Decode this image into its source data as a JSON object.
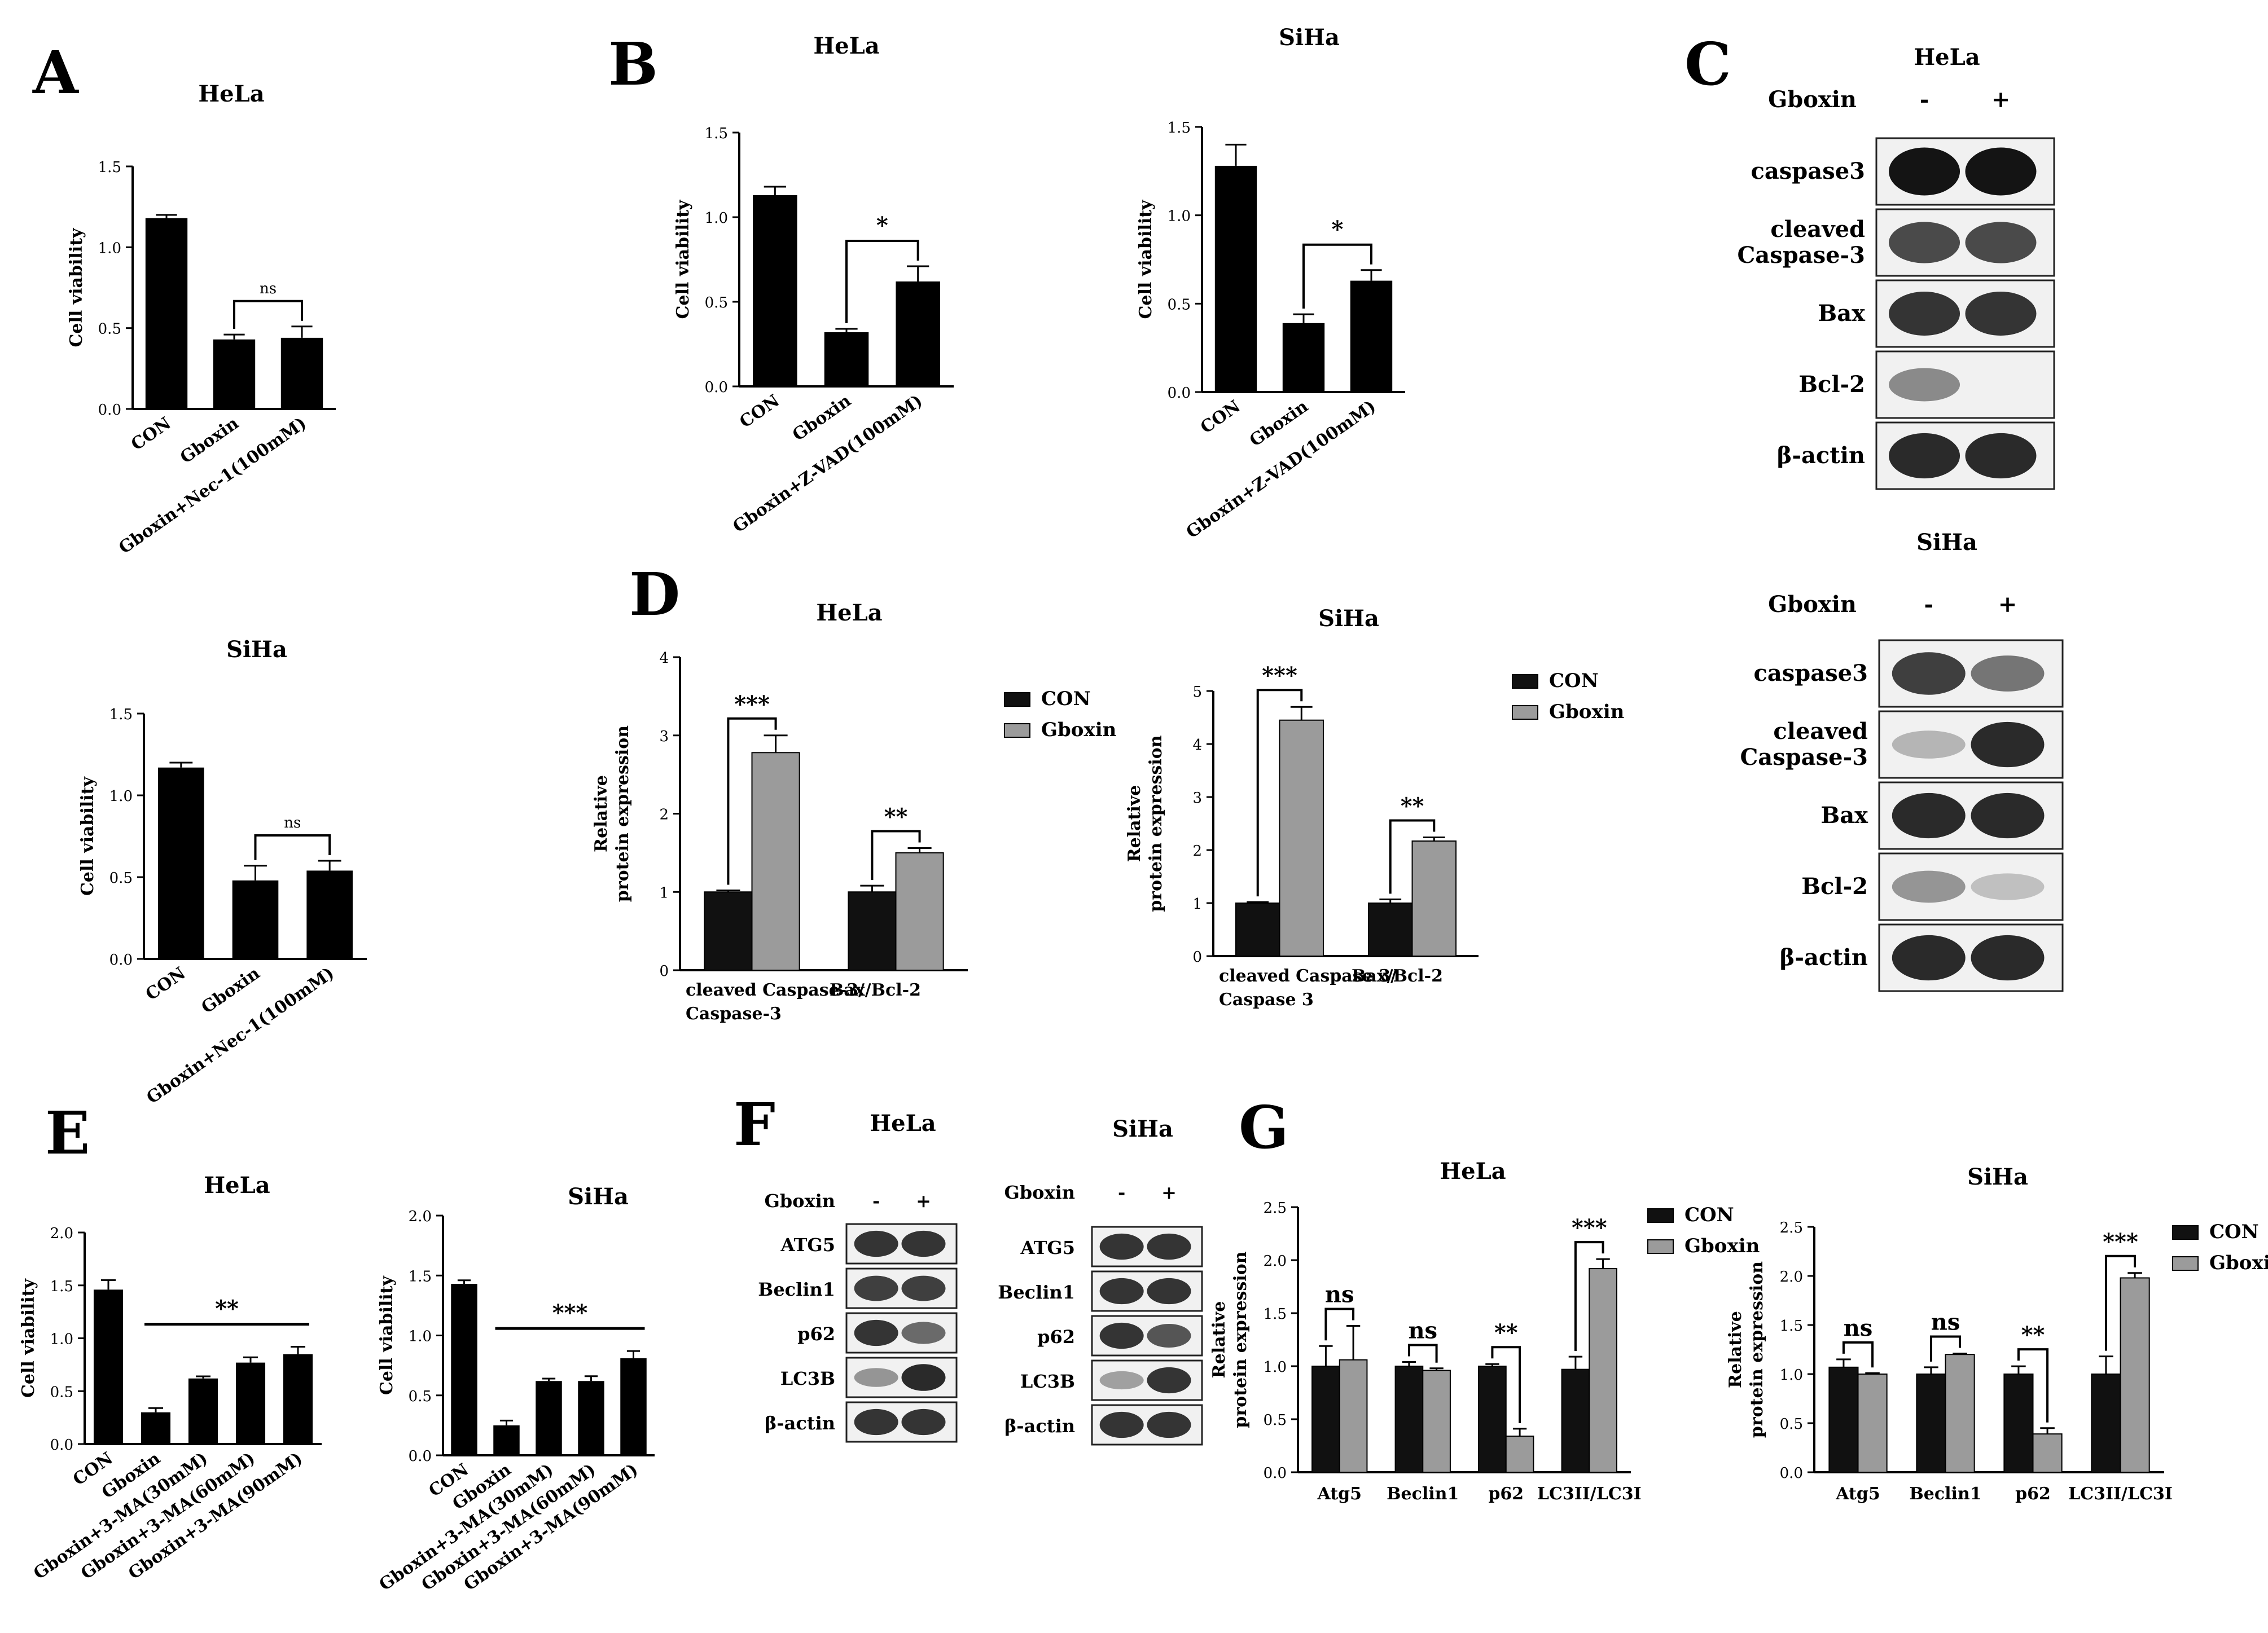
{
  "panels": {
    "A": "A",
    "B": "B",
    "C": "C",
    "D": "D",
    "E": "E",
    "F": "F",
    "G": "G"
  },
  "chart_data": [
    {
      "id": "A1",
      "type": "bar",
      "title": "HeLa",
      "ylabel": "Cell viability",
      "ylim": [
        0,
        1.5
      ],
      "yticks": [
        "0.0",
        "0.5",
        "1.0",
        "1.5"
      ],
      "categories": [
        "CON",
        "Gboxin",
        "Gboxin+Nec-1(100mM)"
      ],
      "values": [
        1.18,
        0.43,
        0.44
      ],
      "errors": [
        0.02,
        0.03,
        0.07
      ],
      "sig": [
        {
          "from": 1,
          "to": 2,
          "label": "ns"
        }
      ]
    },
    {
      "id": "A2",
      "type": "bar",
      "title": "SiHa",
      "ylabel": "Cell viability",
      "ylim": [
        0,
        1.5
      ],
      "yticks": [
        "0.0",
        "0.5",
        "1.0",
        "1.5"
      ],
      "categories": [
        "CON",
        "Gboxin",
        "Gboxin+Nec-1(100mM)"
      ],
      "values": [
        1.17,
        0.48,
        0.54
      ],
      "errors": [
        0.03,
        0.09,
        0.06
      ],
      "sig": [
        {
          "from": 1,
          "to": 2,
          "label": "ns"
        }
      ]
    },
    {
      "id": "B1",
      "type": "bar",
      "title": "HeLa",
      "ylabel": "Cell viability",
      "ylim": [
        0,
        1.5
      ],
      "yticks": [
        "0.0",
        "0.5",
        "1.0",
        "1.5"
      ],
      "categories": [
        "CON",
        "Gboxin",
        "Gboxin+Z-VAD(100mM)"
      ],
      "values": [
        1.13,
        0.32,
        0.62
      ],
      "errors": [
        0.05,
        0.02,
        0.09
      ],
      "sig": [
        {
          "from": 1,
          "to": 2,
          "label": "*"
        }
      ]
    },
    {
      "id": "B2",
      "type": "bar",
      "title": "SiHa",
      "ylabel": "Cell viability",
      "ylim": [
        0,
        1.5
      ],
      "yticks": [
        "0.0",
        "0.5",
        "1.0",
        "1.5"
      ],
      "categories": [
        "CON",
        "Gboxin",
        "Gboxin+Z-VAD(100mM)"
      ],
      "values": [
        1.28,
        0.39,
        0.63
      ],
      "errors": [
        0.12,
        0.05,
        0.06
      ],
      "sig": [
        {
          "from": 1,
          "to": 2,
          "label": "*"
        }
      ]
    },
    {
      "id": "D1",
      "type": "bar",
      "title": "HeLa",
      "ylabel": [
        "Relative",
        "protein expression"
      ],
      "ylim": [
        0,
        4
      ],
      "yticks": [
        "0",
        "1",
        "2",
        "3",
        "4"
      ],
      "categories": [
        "cleaved Caspase-3/\nCaspase-3",
        "Bax/Bcl-2"
      ],
      "series": [
        {
          "name": "CON",
          "values": [
            1.0,
            1.0
          ],
          "errors": [
            0.02,
            0.08
          ]
        },
        {
          "name": "Gboxin",
          "values": [
            2.78,
            1.5
          ],
          "errors": [
            0.22,
            0.06
          ]
        }
      ],
      "sig": [
        {
          "group": 0,
          "label": "***"
        },
        {
          "group": 1,
          "label": "**"
        }
      ],
      "legend": "right"
    },
    {
      "id": "D2",
      "type": "bar",
      "title": "SiHa",
      "ylabel": [
        "Relative",
        "protein expression"
      ],
      "ylim": [
        0,
        5
      ],
      "yticks": [
        "0",
        "1",
        "2",
        "3",
        "4",
        "5"
      ],
      "categories": [
        "cleaved Caspase 3/\nCaspase 3",
        "Bax/Bcl-2"
      ],
      "series": [
        {
          "name": "CON",
          "values": [
            1.0,
            1.0
          ],
          "errors": [
            0.02,
            0.07
          ]
        },
        {
          "name": "Gboxin",
          "values": [
            4.45,
            2.17
          ],
          "errors": [
            0.25,
            0.07
          ]
        }
      ],
      "sig": [
        {
          "group": 0,
          "label": "***"
        },
        {
          "group": 1,
          "label": "**"
        }
      ],
      "legend": "right"
    },
    {
      "id": "E1",
      "type": "bar",
      "title": "HeLa",
      "ylabel": "Cell viability",
      "ylim": [
        0,
        2
      ],
      "yticks": [
        "0.0",
        "0.5",
        "1.0",
        "1.5",
        "2.0"
      ],
      "categories": [
        "CON",
        "Gboxin",
        "Gboxin+3-MA(30mM)",
        "Gboxin+3-MA(60mM)",
        "Gboxin+3-MA(90mM)"
      ],
      "values": [
        1.46,
        0.3,
        0.62,
        0.77,
        0.85
      ],
      "errors": [
        0.09,
        0.04,
        0.02,
        0.05,
        0.07
      ],
      "sig": [
        {
          "from": 1,
          "to": 4,
          "label": "**",
          "line_only": true
        }
      ]
    },
    {
      "id": "E2",
      "type": "bar",
      "title": "SiHa",
      "ylabel": "Cell viability",
      "ylim": [
        0,
        2
      ],
      "yticks": [
        "0.0",
        "0.5",
        "1.0",
        "1.5",
        "2.0"
      ],
      "categories": [
        "CON",
        "Gboxin",
        "Gboxin+3-MA(30mM)",
        "Gboxin+3-MA(60mM)",
        "Gboxin+3-MA(90mM)"
      ],
      "values": [
        1.43,
        0.25,
        0.62,
        0.62,
        0.81
      ],
      "errors": [
        0.03,
        0.04,
        0.02,
        0.04,
        0.06
      ],
      "sig": [
        {
          "from": 1,
          "to": 4,
          "label": "***",
          "line_only": true
        }
      ]
    },
    {
      "id": "G1",
      "type": "bar",
      "title": "HeLa",
      "ylabel": [
        "Relative",
        "protein expression"
      ],
      "ylim": [
        0,
        2.5
      ],
      "yticks": [
        "0.0",
        "0.5",
        "1.0",
        "1.5",
        "2.0",
        "2.5"
      ],
      "categories": [
        "Atg5",
        "Beclin1",
        "p62",
        "LC3II/LC3I"
      ],
      "series": [
        {
          "name": "CON",
          "values": [
            1.0,
            1.0,
            1.0,
            0.97
          ],
          "errors": [
            0.19,
            0.04,
            0.02,
            0.12
          ]
        },
        {
          "name": "Gboxin",
          "values": [
            1.06,
            0.96,
            0.34,
            1.92
          ],
          "errors": [
            0.32,
            0.02,
            0.07,
            0.09
          ]
        }
      ],
      "sig": [
        {
          "group": 0,
          "label": "ns"
        },
        {
          "group": 1,
          "label": "ns"
        },
        {
          "group": 2,
          "label": "**"
        },
        {
          "group": 3,
          "label": "***"
        }
      ],
      "legend": "right"
    },
    {
      "id": "G2",
      "type": "bar",
      "title": "SiHa",
      "ylabel": [
        "Relative",
        "protein expression"
      ],
      "ylim": [
        0,
        2.5
      ],
      "yticks": [
        "0.0",
        "0.5",
        "1.0",
        "1.5",
        "2.0",
        "2.5"
      ],
      "categories": [
        "Atg5",
        "Beclin1",
        "p62",
        "LC3II/LC3I"
      ],
      "series": [
        {
          "name": "CON",
          "values": [
            1.07,
            1.0,
            1.0,
            1.0
          ],
          "errors": [
            0.08,
            0.07,
            0.08,
            0.18
          ]
        },
        {
          "name": "Gboxin",
          "values": [
            1.0,
            1.2,
            0.39,
            1.98
          ],
          "errors": [
            0.01,
            0.01,
            0.06,
            0.05
          ]
        }
      ],
      "sig": [
        {
          "group": 0,
          "label": "ns"
        },
        {
          "group": 1,
          "label": "ns"
        },
        {
          "group": 2,
          "label": "**"
        },
        {
          "group": 3,
          "label": "***"
        }
      ],
      "legend": "right"
    }
  ],
  "blots": [
    {
      "id": "C1",
      "cell": "HeLa",
      "treatment": "Gboxin",
      "lanes": [
        "-",
        "+"
      ],
      "rows": [
        {
          "label": "caspase3",
          "bands": [
            1.0,
            1.0
          ]
        },
        {
          "label": "cleaved\nCaspase-3",
          "bands": [
            0.75,
            0.75
          ]
        },
        {
          "label": "Bax",
          "bands": [
            0.85,
            0.85
          ]
        },
        {
          "label": "Bcl-2",
          "bands": [
            0.45,
            0.0
          ]
        },
        {
          "label": "β-actin",
          "bands": [
            0.9,
            0.9
          ]
        }
      ]
    },
    {
      "id": "C2",
      "cell": "SiHa",
      "treatment": "Gboxin",
      "lanes": [
        "-",
        "+"
      ],
      "rows": [
        {
          "label": "caspase3",
          "bands": [
            0.8,
            0.55
          ]
        },
        {
          "label": "cleaved\nCaspase-3",
          "bands": [
            0.25,
            0.9
          ]
        },
        {
          "label": "Bax",
          "bands": [
            0.9,
            0.9
          ]
        },
        {
          "label": "Bcl-2",
          "bands": [
            0.4,
            0.2
          ]
        },
        {
          "label": "β-actin",
          "bands": [
            0.9,
            0.9
          ]
        }
      ]
    },
    {
      "id": "F1",
      "cell": "HeLa",
      "treatment": "Gboxin",
      "lanes": [
        "-",
        "+"
      ],
      "rows": [
        {
          "label": "ATG5",
          "bands": [
            0.85,
            0.85
          ]
        },
        {
          "label": "Beclin1",
          "bands": [
            0.8,
            0.8
          ]
        },
        {
          "label": "p62",
          "bands": [
            0.85,
            0.6
          ]
        },
        {
          "label": "LC3B",
          "bands": [
            0.4,
            0.9
          ]
        },
        {
          "label": "β-actin",
          "bands": [
            0.85,
            0.85
          ]
        }
      ]
    },
    {
      "id": "F2",
      "cell": "SiHa",
      "treatment": "Gboxin",
      "lanes": [
        "-",
        "+"
      ],
      "rows": [
        {
          "label": "ATG5",
          "bands": [
            0.85,
            0.85
          ]
        },
        {
          "label": "Beclin1",
          "bands": [
            0.85,
            0.85
          ]
        },
        {
          "label": "p62",
          "bands": [
            0.85,
            0.7
          ]
        },
        {
          "label": "LC3B",
          "bands": [
            0.35,
            0.85
          ]
        },
        {
          "label": "β-actin",
          "bands": [
            0.85,
            0.85
          ]
        }
      ]
    }
  ],
  "colors": {
    "CON": "#111111",
    "Gboxin": "#9b9b9b",
    "single_bar": "#000000"
  }
}
